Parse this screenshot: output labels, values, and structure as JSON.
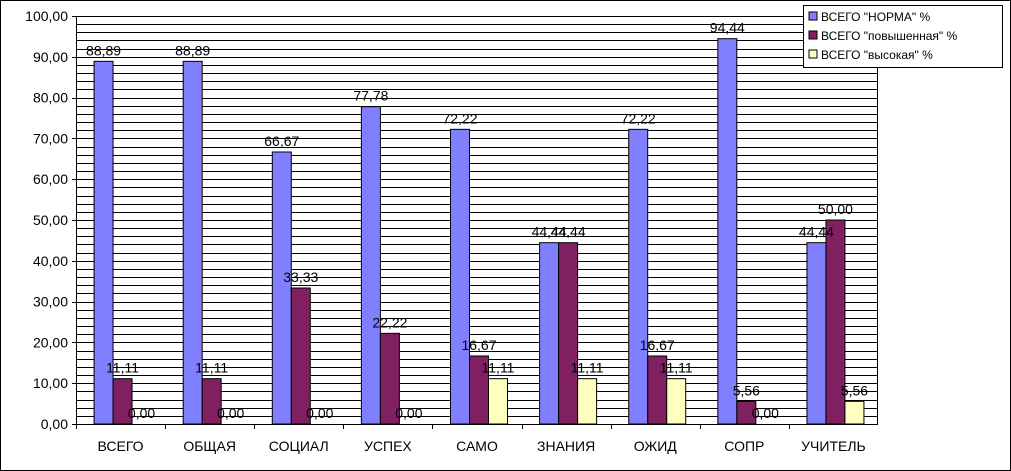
{
  "chart_data": {
    "type": "bar",
    "categories": [
      "ВСЕГО",
      "ОБЩАЯ",
      "СОЦИАЛ",
      "УСПЕХ",
      "САМО",
      "ЗНАНИЯ",
      "ОЖИД",
      "СОПР",
      "УЧИТЕЛЬ"
    ],
    "series": [
      {
        "name": "ВСЕГО \"НОРМА\" %",
        "color": "#8080ff",
        "values": [
          88.89,
          88.89,
          66.67,
          77.78,
          72.22,
          44.44,
          72.22,
          94.44,
          44.44
        ],
        "labels": [
          "88,89",
          "88,89",
          "66,67",
          "77,78",
          "72,22",
          "44,44",
          "72,22",
          "94,44",
          "44,44"
        ]
      },
      {
        "name": "ВСЕГО \"повышенная\"  %",
        "color": "#802060",
        "values": [
          11.11,
          11.11,
          33.33,
          22.22,
          16.67,
          44.44,
          16.67,
          5.56,
          50.0
        ],
        "labels": [
          "11,11",
          "11,11",
          "33,33",
          "22,22",
          "16,67",
          "44,44",
          "16,67",
          "5,56",
          "50,00"
        ]
      },
      {
        "name": "ВСЕГО \"высокая\"  %",
        "color": "#ffffc0",
        "values": [
          0,
          0,
          0,
          0,
          11.11,
          11.11,
          11.11,
          0,
          5.56
        ],
        "labels": [
          "0,00",
          "0,00",
          "0,00",
          "0,00",
          "11,11",
          "11,11",
          "11,11",
          "0,00",
          "5,56"
        ]
      }
    ],
    "yticks": [
      "0,00",
      "10,00",
      "20,00",
      "30,00",
      "40,00",
      "50,00",
      "60,00",
      "70,00",
      "80,00",
      "90,00",
      "100,00"
    ],
    "ylim": [
      0,
      100
    ],
    "grid": true,
    "legend": "top-right",
    "title": "",
    "xlabel": "",
    "ylabel": ""
  }
}
